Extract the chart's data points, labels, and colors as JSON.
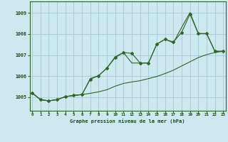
{
  "title": "Graphe pression niveau de la mer (hPa)",
  "bg_color": "#cde8ee",
  "grid_color": "#aacdd6",
  "line_color": "#2d6629",
  "xlim": [
    -0.3,
    23.3
  ],
  "ylim": [
    1004.35,
    1009.55
  ],
  "yticks": [
    1005,
    1006,
    1007,
    1008,
    1009
  ],
  "xticks": [
    0,
    1,
    2,
    3,
    4,
    5,
    6,
    7,
    8,
    9,
    10,
    11,
    12,
    13,
    14,
    15,
    16,
    17,
    18,
    19,
    20,
    21,
    22,
    23
  ],
  "series1_x": [
    0,
    1,
    2,
    3,
    4,
    5,
    6,
    7,
    8,
    9,
    10,
    11,
    12,
    13,
    14,
    15,
    16,
    17,
    18,
    19,
    20,
    21,
    22,
    23
  ],
  "series1_y": [
    1005.2,
    1004.88,
    1004.82,
    1004.88,
    1005.02,
    1005.08,
    1005.12,
    1005.85,
    1006.02,
    1006.38,
    1006.88,
    1007.12,
    1007.08,
    1006.62,
    1006.62,
    1007.52,
    1007.75,
    1007.62,
    1008.08,
    1008.95,
    1008.02,
    1008.02,
    1007.18,
    1007.18
  ],
  "series2_x": [
    0,
    1,
    2,
    3,
    4,
    5,
    6,
    7,
    8,
    9,
    10,
    11,
    12,
    13,
    14,
    15,
    16,
    17,
    18,
    19,
    20,
    21,
    22,
    23
  ],
  "series2_y": [
    1005.2,
    1004.88,
    1004.82,
    1004.88,
    1005.02,
    1005.08,
    1005.12,
    1005.18,
    1005.25,
    1005.35,
    1005.52,
    1005.65,
    1005.72,
    1005.78,
    1005.88,
    1005.98,
    1006.12,
    1006.28,
    1006.48,
    1006.68,
    1006.88,
    1007.02,
    1007.12,
    1007.18
  ],
  "series3_x": [
    0,
    1,
    2,
    3,
    4,
    5,
    6,
    7,
    8,
    9,
    10,
    11,
    12,
    13,
    14,
    15,
    16,
    17,
    18,
    19,
    20,
    21,
    22,
    23
  ],
  "series3_y": [
    1005.2,
    1004.88,
    1004.82,
    1004.88,
    1005.02,
    1005.08,
    1005.12,
    1005.88,
    1006.02,
    1006.38,
    1006.92,
    1007.12,
    1006.62,
    1006.62,
    1006.62,
    1007.52,
    1007.75,
    1007.58,
    1008.32,
    1009.02,
    1008.02,
    1008.02,
    1007.18,
    1007.18
  ]
}
